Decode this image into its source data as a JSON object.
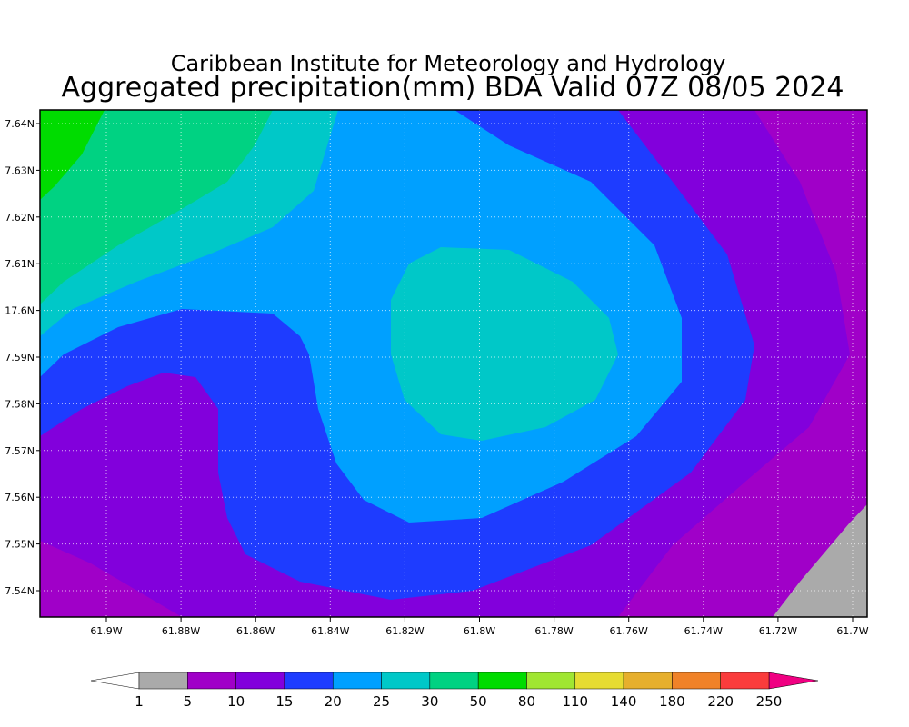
{
  "header": {
    "institute": "Caribbean Institute for Meteorology and Hydrology",
    "title": "Aggregated precipitation(mm) BDA Valid 07Z 08/05 2024"
  },
  "map": {
    "lat_labels": [
      "7.64N",
      "7.63N",
      "7.62N",
      "7.61N",
      "17.6N",
      "7.59N",
      "7.58N",
      "7.57N",
      "7.56N",
      "7.55N",
      "7.54N"
    ],
    "lon_labels": [
      "61.9W",
      "61.88W",
      "61.86W",
      "61.84W",
      "61.82W",
      "61.8W",
      "61.78W",
      "61.76W",
      "61.74W",
      "61.72W",
      "61.7W"
    ]
  },
  "colorbar": {
    "levels": [
      1,
      5,
      10,
      15,
      20,
      25,
      30,
      50,
      80,
      110,
      140,
      180,
      220,
      250
    ],
    "colors": [
      "#aaaaaa",
      "#a000c8",
      "#8200dc",
      "#1e3cff",
      "#00a0ff",
      "#00c8c8",
      "#00d282",
      "#00dc00",
      "#a0e632",
      "#e6dc32",
      "#e6af2d",
      "#f08228",
      "#fa3c3c"
    ],
    "under_color": "#ffffff",
    "over_color": "#f00082"
  }
}
